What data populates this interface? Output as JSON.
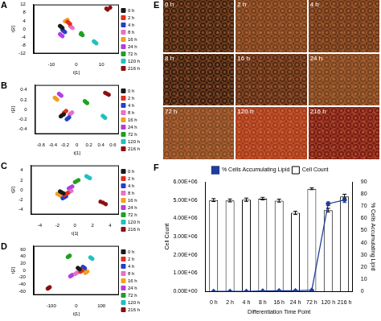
{
  "chart_data": [
    {
      "panel": "A",
      "type": "scatter",
      "x_label": "t[1]",
      "y_label": "t[2]",
      "xlim": [
        -17,
        17
      ],
      "xticks": [
        -10,
        0,
        10
      ],
      "ylim": [
        -12,
        12
      ],
      "yticks": [
        -12,
        -8,
        -4,
        0,
        4,
        8,
        12
      ],
      "grid": false,
      "legend": "right",
      "series": [
        {
          "name": "0 h",
          "color": "#1a1a1a",
          "values": [
            [
              -6,
              1
            ],
            [
              -5.5,
              0.5
            ],
            [
              -6.5,
              1.5
            ]
          ]
        },
        {
          "name": "2 h",
          "color": "#e0301e",
          "values": [
            [
              -3,
              3
            ],
            [
              -2.5,
              2.5
            ],
            [
              -3.5,
              3.5
            ]
          ]
        },
        {
          "name": "4 h",
          "color": "#2340c8",
          "values": [
            [
              -5,
              -1
            ],
            [
              -4.5,
              -1.5
            ],
            [
              -5.5,
              -0.5
            ]
          ]
        },
        {
          "name": "8 h",
          "color": "#e870c8",
          "values": [
            [
              -2,
              1
            ],
            [
              -1.5,
              0.5
            ],
            [
              -2.5,
              1.5
            ]
          ]
        },
        {
          "name": "16 h",
          "color": "#f0a020",
          "values": [
            [
              -4,
              4
            ],
            [
              -3.5,
              4.5
            ],
            [
              -4.5,
              3.8
            ]
          ]
        },
        {
          "name": "24 h",
          "color": "#b040e0",
          "values": [
            [
              -6,
              -3
            ],
            [
              -5.5,
              -3.5
            ],
            [
              -6.5,
              -2.5
            ]
          ]
        },
        {
          "name": "72 h",
          "color": "#20a020",
          "values": [
            [
              2,
              -2
            ],
            [
              2.5,
              -3
            ],
            [
              1.8,
              -2.5
            ]
          ]
        },
        {
          "name": "120 h",
          "color": "#20c0c0",
          "values": [
            [
              7,
              -6
            ],
            [
              8,
              -7
            ],
            [
              7.5,
              -6.5
            ]
          ]
        },
        {
          "name": "216 h",
          "color": "#8b1010",
          "values": [
            [
              12,
              10
            ],
            [
              13.5,
              10.5
            ],
            [
              12.5,
              9.5
            ]
          ]
        }
      ]
    },
    {
      "panel": "B",
      "type": "scatter",
      "x_label": "t[1]",
      "y_label": "t[2]",
      "xlim": [
        -0.7,
        0.7
      ],
      "xticks": [
        -0.6,
        -0.4,
        -0.2,
        0,
        0.2,
        0.4,
        0.6
      ],
      "ylim": [
        -0.5,
        0.5
      ],
      "yticks": [
        -0.4,
        -0.2,
        0,
        0.2,
        0.4
      ],
      "grid": false,
      "legend": "right",
      "series": [
        {
          "name": "0 h",
          "color": "#1a1a1a",
          "values": [
            [
              -0.25,
              -0.12
            ],
            [
              -0.22,
              -0.1
            ],
            [
              -0.27,
              -0.14
            ]
          ]
        },
        {
          "name": "2 h",
          "color": "#e0301e",
          "values": [
            [
              -0.2,
              -0.05
            ],
            [
              -0.18,
              -0.03
            ],
            [
              -0.22,
              -0.07
            ]
          ]
        },
        {
          "name": "4 h",
          "color": "#2340c8",
          "values": [
            [
              -0.15,
              -0.18
            ],
            [
              -0.13,
              -0.16
            ],
            [
              -0.17,
              -0.2
            ]
          ]
        },
        {
          "name": "8 h",
          "color": "#e870c8",
          "values": [
            [
              -0.1,
              -0.08
            ],
            [
              -0.08,
              -0.06
            ],
            [
              -0.12,
              -0.1
            ]
          ]
        },
        {
          "name": "16 h",
          "color": "#f0a020",
          "values": [
            [
              -0.35,
              0.22
            ],
            [
              -0.33,
              0.2
            ],
            [
              -0.37,
              0.24
            ]
          ]
        },
        {
          "name": "24 h",
          "color": "#b040e0",
          "values": [
            [
              -0.28,
              0.3
            ],
            [
              -0.26,
              0.28
            ],
            [
              -0.3,
              0.32
            ]
          ]
        },
        {
          "name": "72 h",
          "color": "#20a020",
          "values": [
            [
              0.15,
              0.15
            ],
            [
              0.17,
              0.13
            ],
            [
              0.13,
              0.17
            ]
          ]
        },
        {
          "name": "120 h",
          "color": "#20c0c0",
          "values": [
            [
              0.45,
              -0.15
            ],
            [
              0.47,
              -0.17
            ],
            [
              0.43,
              -0.13
            ]
          ]
        },
        {
          "name": "216 h",
          "color": "#8b1010",
          "values": [
            [
              0.5,
              0.32
            ],
            [
              0.53,
              0.3
            ],
            [
              0.47,
              0.34
            ]
          ]
        }
      ]
    },
    {
      "panel": "C",
      "type": "scatter",
      "x_label": "t[1]",
      "y_label": "t[2]",
      "xlim": [
        -5,
        5
      ],
      "xticks": [
        -4,
        -2,
        0,
        2,
        4
      ],
      "ylim": [
        -5,
        5
      ],
      "yticks": [
        -4,
        -2,
        0,
        2,
        4
      ],
      "grid": false,
      "legend": "right",
      "series": [
        {
          "name": "0 h",
          "color": "#1a1a1a",
          "values": [
            [
              -1.5,
              -0.5
            ],
            [
              -1.3,
              -0.7
            ],
            [
              -1.7,
              -0.3
            ]
          ]
        },
        {
          "name": "2 h",
          "color": "#e0301e",
          "values": [
            [
              -1,
              -0.8
            ],
            [
              -0.8,
              -0.6
            ],
            [
              -1.2,
              -1
            ]
          ]
        },
        {
          "name": "4 h",
          "color": "#2340c8",
          "values": [
            [
              -1.2,
              -1.5
            ],
            [
              -1,
              -1.3
            ],
            [
              -1.4,
              -1.7
            ]
          ]
        },
        {
          "name": "8 h",
          "color": "#e870c8",
          "values": [
            [
              -0.6,
              -0.4
            ],
            [
              -0.4,
              -0.2
            ],
            [
              -0.8,
              -0.6
            ]
          ]
        },
        {
          "name": "16 h",
          "color": "#f0a020",
          "values": [
            [
              -1.8,
              -1
            ],
            [
              -1.6,
              -1.2
            ],
            [
              -2,
              -0.8
            ]
          ]
        },
        {
          "name": "24 h",
          "color": "#b040e0",
          "values": [
            [
              -0.5,
              0.5
            ],
            [
              -0.3,
              0.7
            ],
            [
              -0.7,
              0.3
            ]
          ]
        },
        {
          "name": "72 h",
          "color": "#20a020",
          "values": [
            [
              0.2,
              1.8
            ],
            [
              0.4,
              2
            ],
            [
              0,
              1.6
            ]
          ]
        },
        {
          "name": "120 h",
          "color": "#20c0c0",
          "values": [
            [
              1.5,
              2.6
            ],
            [
              1.7,
              2.4
            ],
            [
              1.3,
              2.8
            ]
          ]
        },
        {
          "name": "216 h",
          "color": "#8b1010",
          "values": [
            [
              3.2,
              -2.6
            ],
            [
              3.5,
              -2.9
            ],
            [
              2.9,
              -2.4
            ]
          ]
        }
      ]
    },
    {
      "panel": "D",
      "type": "scatter",
      "x_label": "t[1]",
      "y_label": "t[2]",
      "xlim": [
        -170,
        170
      ],
      "xticks": [
        -100,
        0,
        100
      ],
      "ylim": [
        -70,
        70
      ],
      "yticks": [
        -60,
        -40,
        -20,
        0,
        20,
        40,
        60
      ],
      "grid": false,
      "legend": "right",
      "series": [
        {
          "name": "0 h",
          "color": "#1a1a1a",
          "values": [
            [
              10,
              5
            ],
            [
              14,
              3
            ],
            [
              6,
              7
            ]
          ]
        },
        {
          "name": "2 h",
          "color": "#e0301e",
          "values": [
            [
              20,
              -2
            ],
            [
              24,
              0
            ],
            [
              16,
              -4
            ]
          ]
        },
        {
          "name": "4 h",
          "color": "#2340c8",
          "values": [
            [
              30,
              8
            ],
            [
              34,
              6
            ],
            [
              26,
              10
            ]
          ]
        },
        {
          "name": "8 h",
          "color": "#e870c8",
          "values": [
            [
              0,
              -8
            ],
            [
              4,
              -6
            ],
            [
              -4,
              -10
            ]
          ]
        },
        {
          "name": "16 h",
          "color": "#f0a020",
          "values": [
            [
              40,
              -5
            ],
            [
              44,
              -3
            ],
            [
              36,
              -7
            ]
          ]
        },
        {
          "name": "24 h",
          "color": "#b040e0",
          "values": [
            [
              -20,
              -15
            ],
            [
              -16,
              -13
            ],
            [
              -24,
              -17
            ]
          ]
        },
        {
          "name": "72 h",
          "color": "#20a020",
          "values": [
            [
              -30,
              40
            ],
            [
              -26,
              42
            ],
            [
              -34,
              38
            ]
          ]
        },
        {
          "name": "120 h",
          "color": "#20c0c0",
          "values": [
            [
              60,
              35
            ],
            [
              64,
              33
            ],
            [
              56,
              37
            ]
          ]
        },
        {
          "name": "216 h",
          "color": "#8b1010",
          "values": [
            [
              -110,
              -50
            ],
            [
              -106,
              -48
            ],
            [
              -114,
              -52
            ]
          ]
        }
      ]
    },
    {
      "panel": "F",
      "type": "bar",
      "x_label": "Differentiation Time Point",
      "y_label": "Cell Count",
      "y2_label": "% Cells Accumulating Lipid",
      "categories": [
        "0 h",
        "2 h",
        "4 h",
        "8 h",
        "16 h",
        "24 h",
        "72 h",
        "120 h",
        "216 h"
      ],
      "ylim": [
        0,
        6000000
      ],
      "yticks": [
        {
          "value": 0,
          "label": "0.00E+00"
        },
        {
          "value": 1000000,
          "label": "1.00E+06"
        },
        {
          "value": 2000000,
          "label": "2.00E+06"
        },
        {
          "value": 3000000,
          "label": "3.00E+06"
        },
        {
          "value": 4000000,
          "label": "4.00E+06"
        },
        {
          "value": 5000000,
          "label": "5.00E+06"
        },
        {
          "value": 6000000,
          "label": "6.00E+06"
        }
      ],
      "y2lim": [
        0,
        90
      ],
      "y2ticks": [
        0,
        10,
        20,
        30,
        40,
        50,
        60,
        70,
        80,
        90
      ],
      "grid": false,
      "legend": "top",
      "series": [
        {
          "name": "Cell Count",
          "type": "bar",
          "color": "#ffffff",
          "values": [
            5000000,
            4980000,
            5020000,
            5080000,
            4970000,
            4300000,
            5620000,
            4450000,
            5200000
          ],
          "errors": [
            80000,
            80000,
            90000,
            70000,
            80000,
            90000,
            50000,
            100000,
            120000
          ]
        },
        {
          "name": "% Cells Accumulating Lipid",
          "type": "line",
          "axis": "y2",
          "color": "#1f3d99",
          "marker": "diamond",
          "values": [
            0,
            0,
            0,
            0.3,
            0.5,
            0.5,
            1,
            72,
            75
          ],
          "errors": [
            0,
            0,
            0,
            0,
            0,
            0,
            0,
            1.5,
            2
          ]
        }
      ]
    }
  ],
  "images": {
    "panel": "E",
    "tiles": [
      {
        "label": "0 h",
        "color": "#301408"
      },
      {
        "label": "2 h",
        "color": "#6a3418"
      },
      {
        "label": "4 h",
        "color": "#5e2c14"
      },
      {
        "label": "8 h",
        "color": "#2a1008"
      },
      {
        "label": "16 h",
        "color": "#4a2010"
      },
      {
        "label": "24 h",
        "color": "#6e3a1c"
      },
      {
        "label": "72 h",
        "color": "#7a4020"
      },
      {
        "label": "120 h",
        "color": "#a03018"
      },
      {
        "label": "216 h",
        "color": "#701010"
      }
    ]
  }
}
